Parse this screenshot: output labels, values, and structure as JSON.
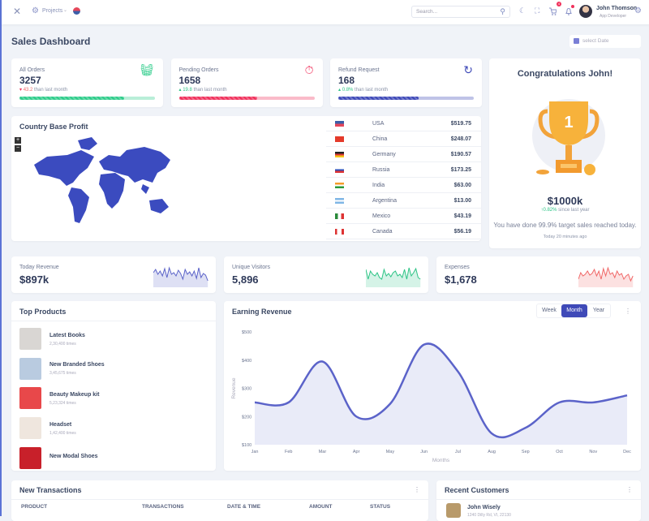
{
  "header": {
    "projects_label": "Projects",
    "search_placeholder": "Search...",
    "cart_badge": "4",
    "user_name": "John Thomson",
    "user_role": "App Developer"
  },
  "page": {
    "title": "Sales Dashboard",
    "date_placeholder": "select Date"
  },
  "stats": [
    {
      "label": "All Orders",
      "value": "3257",
      "change": "43.2",
      "change_suffix": "than last month",
      "direction": "down",
      "progress": 0.77,
      "color": "#2ecc8a",
      "icon": "basket-icon"
    },
    {
      "label": "Pending Orders",
      "value": "1658",
      "change": "19.8",
      "change_suffix": "than last month",
      "direction": "up",
      "progress": 0.58,
      "color": "#f0325c",
      "icon": "stopwatch-icon"
    },
    {
      "label": "Refund Request",
      "value": "168",
      "change": "0.8%",
      "change_suffix": "than last month",
      "direction": "up",
      "progress": 0.59,
      "color": "#3f4ab8",
      "icon": "refresh-icon"
    }
  ],
  "congrats": {
    "title": "Congratulations John!",
    "amount": "$1000k",
    "change": "0.82%",
    "change_suffix": "since last year",
    "message": "You have done 99.9% target sales reached today.",
    "time": "Today 20 minutes ago"
  },
  "country": {
    "title": "Country Base Profit",
    "zoom_in": "+",
    "zoom_out": "−",
    "rows": [
      {
        "country": "USA",
        "value": "$519.75"
      },
      {
        "country": "China",
        "value": "$248.07"
      },
      {
        "country": "Germany",
        "value": "$190.57"
      },
      {
        "country": "Russia",
        "value": "$173.25"
      },
      {
        "country": "India",
        "value": "$63.00"
      },
      {
        "country": "Argentina",
        "value": "$13.00"
      },
      {
        "country": "Mexico",
        "value": "$43.19"
      },
      {
        "country": "Canada",
        "value": "$56.19"
      }
    ]
  },
  "mini": [
    {
      "label": "Today Revenue",
      "value": "$897k",
      "color": "#5b63c9"
    },
    {
      "label": "Unique Visitors",
      "value": "5,896",
      "color": "#2ec486"
    },
    {
      "label": "Expenses",
      "value": "$1,678",
      "color": "#f06868"
    }
  ],
  "top_products": {
    "title": "Top Products",
    "items": [
      {
        "name": "Latest Books",
        "sales": "2,30,400 times"
      },
      {
        "name": "New Branded Shoes",
        "sales": "3,45,675 times"
      },
      {
        "name": "Beauty Makeup kit",
        "sales": "5,23,324 times"
      },
      {
        "name": "Headset",
        "sales": "1,42,400 times"
      },
      {
        "name": "New Modal Shoes",
        "sales": ""
      }
    ]
  },
  "revenue": {
    "title": "Earning Revenue",
    "tabs": [
      "Week",
      "Month",
      "Year"
    ],
    "active_tab": "Month"
  },
  "chart_data": {
    "type": "area",
    "title": "Earning Revenue",
    "xlabel": "Months",
    "ylabel": "Revenue",
    "categories": [
      "Jan",
      "Feb",
      "Mar",
      "Apr",
      "May",
      "Jun",
      "Jul",
      "Aug",
      "Sep",
      "Oct",
      "Nov",
      "Dec"
    ],
    "values": [
      250,
      250,
      395,
      200,
      245,
      455,
      360,
      140,
      160,
      250,
      250,
      275
    ],
    "ylim": [
      100,
      500
    ],
    "yticks": [
      "$100",
      "$200",
      "$300",
      "$400",
      "$500"
    ],
    "color": "#5b63c9",
    "grid": false
  },
  "transactions": {
    "title": "New Transactions",
    "columns": [
      "PRODUCT",
      "TRANSACTIONS",
      "DATE & TIME",
      "AMOUNT",
      "STATUS"
    ]
  },
  "customers": {
    "title": "Recent Customers",
    "items": [
      {
        "name": "John Wisely",
        "address": "1240 Dilly Rd, VI, 22130"
      }
    ]
  }
}
